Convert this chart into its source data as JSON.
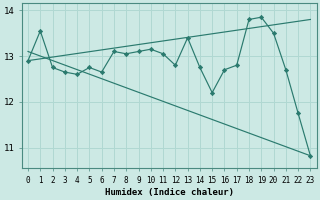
{
  "xlabel": "Humidex (Indice chaleur)",
  "ylabel": "",
  "background_color": "#cce9e4",
  "grid_color": "#b0d8d2",
  "line_color": "#2a7a6e",
  "spine_color": "#4a8a80",
  "xlim": [
    -0.5,
    23.5
  ],
  "ylim": [
    10.55,
    14.15
  ],
  "yticks": [
    11,
    12,
    13,
    14
  ],
  "xtick_labels": [
    "0",
    "1",
    "2",
    "3",
    "4",
    "5",
    "6",
    "7",
    "8",
    "9",
    "10",
    "11",
    "12",
    "13",
    "14",
    "15",
    "16",
    "17",
    "18",
    "19",
    "20",
    "21",
    "22",
    "23"
  ],
  "series_main": {
    "x": [
      0,
      1,
      2,
      3,
      4,
      5,
      6,
      7,
      8,
      9,
      10,
      11,
      12,
      13,
      14,
      15,
      16,
      17,
      18,
      19,
      20,
      21,
      22,
      23
    ],
    "y": [
      12.9,
      13.55,
      12.75,
      12.65,
      12.6,
      12.75,
      12.65,
      13.1,
      13.05,
      13.1,
      13.15,
      13.05,
      12.8,
      13.4,
      12.75,
      12.2,
      12.7,
      12.8,
      13.8,
      13.85,
      13.5,
      12.7,
      11.75,
      10.82
    ]
  },
  "series_line1": {
    "x": [
      0,
      23
    ],
    "y": [
      13.1,
      10.82
    ]
  },
  "series_line2": {
    "x": [
      0,
      23
    ],
    "y": [
      12.9,
      13.8
    ]
  }
}
